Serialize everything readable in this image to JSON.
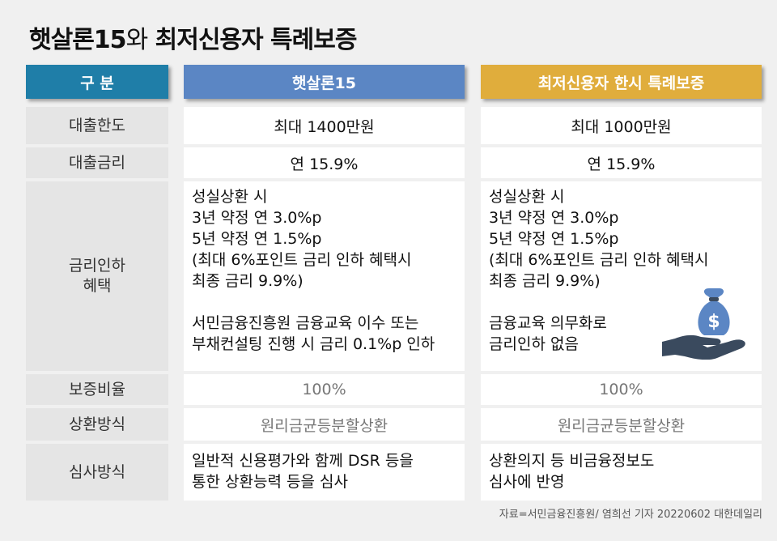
{
  "title": {
    "bold": "햇살론15",
    "light": "와",
    "rest": " 최저신용자 특례보증"
  },
  "header": {
    "col0": "구  분",
    "col1": "햇살론15",
    "col2": "최저신용자 한시 특례보증"
  },
  "colors": {
    "col0": "#1f7ea8",
    "col1": "#5b86c4",
    "col2": "#e0ad3c",
    "icon": "#3a4a5e",
    "icon_accent": "#5b86c4"
  },
  "rows": [
    {
      "label": "대출한도",
      "col1": "최대 1400만원",
      "col2": "최대 1000만원"
    },
    {
      "label": "대출금리",
      "col1": "연 15.9%",
      "col2": "연 15.9%"
    },
    {
      "label": "금리인하\n혜택",
      "col1": "성실상환 시\n3년 약정 연 3.0%p\n5년 약정 연 1.5%p\n(최대 6%포인트 금리 인하 혜택시\n최종 금리 9.9%)\n\n서민금융진흥원 금융교육 이수 또는\n부채컨설팅 진행 시 금리 0.1%p 인하",
      "col2": "성실상환 시\n3년 약정 연 3.0%p\n5년 약정 연 1.5%p\n(최대 6%포인트 금리 인하 혜택시\n최종 금리 9.9%)\n\n금융교육 의무화로\n금리인하 없음"
    },
    {
      "label": "보증비율",
      "col1": "100%",
      "col2": "100%"
    },
    {
      "label": "상환방식",
      "col1": "원리금균등분할상환",
      "col2": "원리금균등분할상환"
    },
    {
      "label": "심사방식",
      "col1": "일반적 신용평가와 함께 DSR 등을\n통한 상환능력 등을 심사",
      "col2": "상환의지 등 비금융정보도\n심사에 반영"
    }
  ],
  "icon": {
    "name": "money-bag-hand-icon",
    "symbol": "$"
  },
  "source": "자료=서민금융진흥원/ 염희선 기자 20220602 대한데일리"
}
